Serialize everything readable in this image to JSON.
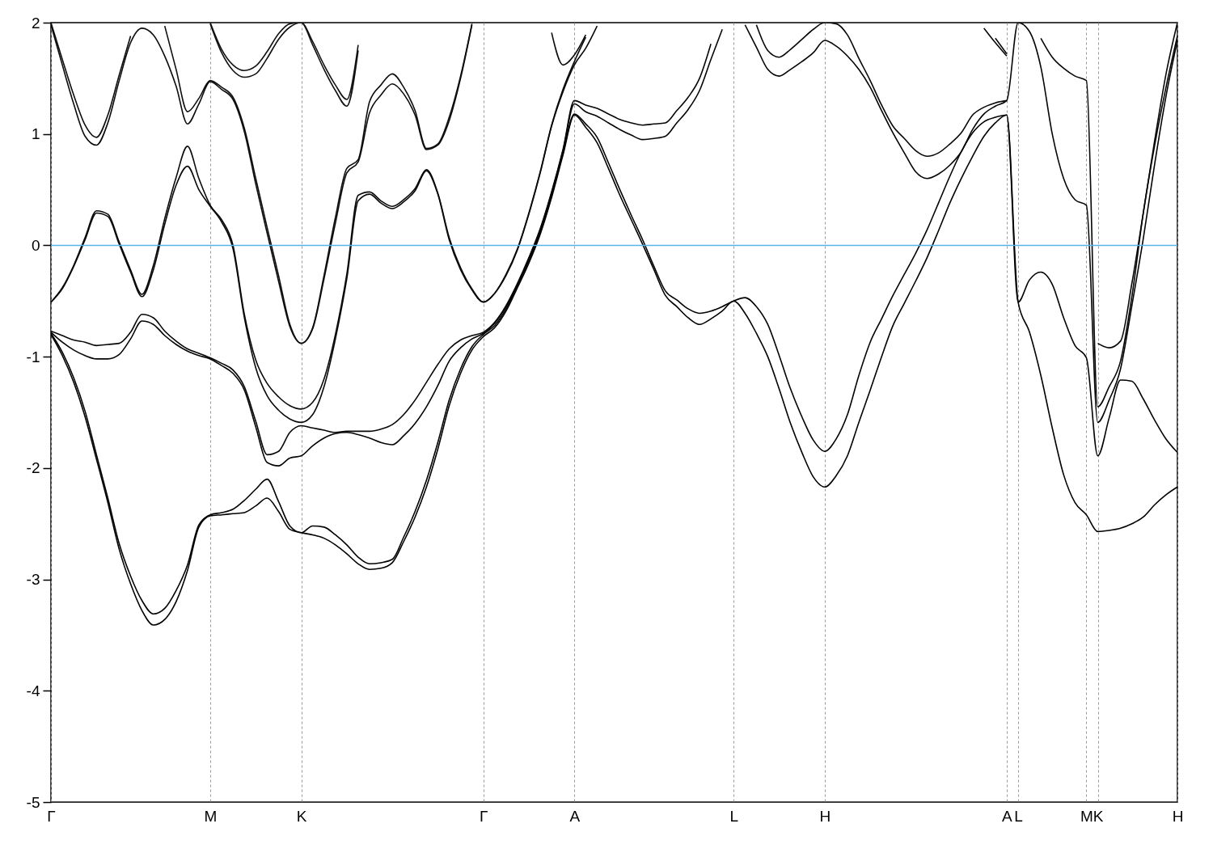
{
  "chart_data": {
    "type": "line",
    "categories": [
      "Γ",
      null,
      null,
      null,
      null,
      null,
      null,
      null,
      null,
      null,
      null,
      null,
      null,
      null,
      "M",
      null,
      null,
      null,
      null,
      null,
      null,
      null,
      "K",
      null,
      null,
      null,
      null,
      null,
      null,
      null,
      null,
      null,
      null,
      null,
      null,
      null,
      null,
      null,
      "Γ",
      null,
      null,
      null,
      null,
      null,
      null,
      null,
      "A",
      null,
      null,
      null,
      null,
      null,
      null,
      null,
      null,
      null,
      null,
      null,
      null,
      null,
      "L",
      null,
      null,
      null,
      null,
      null,
      null,
      null,
      "H",
      null,
      null,
      null,
      null,
      null,
      null,
      null,
      null,
      null,
      null,
      null,
      null,
      null,
      null,
      null,
      "A",
      "L",
      null,
      null,
      null,
      null,
      null,
      "M",
      "K",
      null,
      null,
      null,
      null,
      null,
      null,
      "H"
    ],
    "series": [
      {
        "color": "#000000",
        "values": [
          -0.8,
          -0.99,
          -1.23,
          -1.54,
          -1.92,
          -2.31,
          -2.73,
          -3.04,
          -3.28,
          -3.41,
          -3.36,
          -3.2,
          -2.92,
          -2.53,
          -2.43,
          -2.42,
          -2.41,
          -2.4,
          -2.34,
          -2.27,
          -2.39,
          -2.55,
          -2.58,
          -2.6,
          -2.63,
          -2.69,
          -2.77,
          -2.86,
          -2.91,
          -2.9,
          -2.85,
          -2.66,
          -2.44,
          -2.17,
          -1.83,
          -1.44,
          -1.15,
          -0.94,
          -0.82,
          -0.74,
          -0.59,
          -0.38,
          -0.16,
          0.1,
          0.43,
          0.81,
          1.17,
          1.06,
          0.92,
          0.69,
          0.45,
          0.23,
          0.01,
          -0.22,
          -0.45,
          -0.55,
          -0.65,
          -0.71,
          -0.66,
          -0.59,
          -0.5,
          -0.61,
          -0.79,
          -1.0,
          -1.29,
          -1.6,
          -1.86,
          -2.08,
          -2.17,
          -2.07,
          -1.89,
          -1.59,
          -1.3,
          -1.0,
          -0.72,
          -0.52,
          -0.32,
          -0.11,
          0.13,
          0.38,
          0.6,
          0.8,
          0.98,
          1.1,
          1.17,
          -0.51,
          -0.78,
          -1.17,
          -1.64,
          -2.06,
          -2.31,
          -2.42,
          -2.57,
          -2.56,
          -2.54,
          -2.5,
          -2.44,
          -2.33,
          -2.24,
          -2.17
        ]
      },
      {
        "color": "#020202",
        "values": [
          -0.79,
          -0.96,
          -1.19,
          -1.49,
          -1.88,
          -2.27,
          -2.68,
          -2.97,
          -3.19,
          -3.31,
          -3.26,
          -3.1,
          -2.87,
          -2.51,
          -2.42,
          -2.4,
          -2.37,
          -2.29,
          -2.19,
          -2.1,
          -2.3,
          -2.52,
          -2.58,
          -2.52,
          -2.53,
          -2.6,
          -2.69,
          -2.8,
          -2.86,
          -2.85,
          -2.82,
          -2.62,
          -2.39,
          -2.11,
          -1.77,
          -1.39,
          -1.11,
          -0.91,
          -0.8,
          -0.72,
          -0.57,
          -0.36,
          -0.14,
          0.12,
          0.45,
          0.83,
          1.18,
          1.09,
          0.97,
          0.74,
          0.5,
          0.27,
          0.05,
          -0.19,
          -0.41,
          -0.49,
          -0.57,
          -0.61,
          -0.59,
          -0.55,
          -0.5,
          -0.47,
          -0.55,
          -0.71,
          -0.99,
          -1.29,
          -1.54,
          -1.75,
          -1.85,
          -1.74,
          -1.52,
          -1.17,
          -0.87,
          -0.66,
          -0.45,
          -0.26,
          -0.07,
          0.14,
          0.38,
          0.62,
          0.84,
          1.01,
          1.11,
          1.15,
          1.17,
          -0.51,
          -0.31,
          -0.24,
          -0.35,
          -0.65,
          -0.9,
          -1.01,
          -1.89,
          -1.55,
          -1.21,
          -1.22,
          -1.38,
          -1.57,
          -1.74,
          -1.86
        ]
      },
      {
        "color": "#040404",
        "values": [
          -0.78,
          -0.87,
          -0.94,
          -0.99,
          -1.02,
          -1.02,
          -0.98,
          -0.84,
          -0.68,
          -0.71,
          -0.81,
          -0.89,
          -0.95,
          -0.99,
          -1.02,
          -1.08,
          -1.15,
          -1.3,
          -1.63,
          -1.95,
          -1.98,
          -1.91,
          -1.89,
          -1.8,
          -1.73,
          -1.69,
          -1.68,
          -1.7,
          -1.73,
          -1.77,
          -1.79,
          -1.71,
          -1.6,
          -1.45,
          -1.26,
          -1.04,
          -0.92,
          -0.84,
          -0.79,
          -0.7,
          -0.55,
          -0.35,
          -0.12,
          0.14,
          0.47,
          0.85,
          1.27,
          1.2,
          1.16,
          1.1,
          1.04,
          0.99,
          0.95,
          0.96,
          0.98,
          1.1,
          1.22,
          1.39,
          1.67,
          1.94,
          null,
          1.98,
          1.78,
          1.58,
          1.52,
          1.58,
          1.65,
          1.73,
          1.84,
          1.79,
          1.7,
          1.58,
          1.42,
          1.21,
          1.01,
          0.83,
          0.66,
          0.6,
          0.64,
          0.72,
          0.84,
          1.04,
          1.18,
          1.25,
          1.3,
          2.0,
          1.92,
          1.6,
          1.0,
          0.6,
          0.41,
          0.36,
          -1.59,
          -1.39,
          -1.11,
          -0.54,
          0.06,
          0.73,
          1.34,
          1.84
        ]
      },
      {
        "color": "#060606",
        "values": [
          -0.77,
          -0.81,
          -0.85,
          -0.87,
          -0.9,
          -0.89,
          -0.88,
          -0.78,
          -0.62,
          -0.65,
          -0.77,
          -0.86,
          -0.93,
          -0.97,
          -1.01,
          -1.06,
          -1.12,
          -1.27,
          -1.58,
          -1.88,
          -1.85,
          -1.68,
          -1.62,
          -1.64,
          -1.66,
          -1.68,
          -1.67,
          -1.67,
          -1.67,
          -1.65,
          -1.61,
          -1.52,
          -1.39,
          -1.23,
          -1.07,
          -0.93,
          -0.85,
          -0.81,
          -0.78,
          -0.69,
          -0.54,
          -0.34,
          -0.11,
          0.15,
          0.48,
          0.86,
          1.3,
          1.26,
          1.23,
          1.18,
          1.13,
          1.1,
          1.08,
          1.09,
          1.1,
          1.21,
          1.33,
          1.5,
          1.81,
          null,
          null,
          null,
          1.98,
          1.75,
          1.69,
          1.76,
          1.85,
          1.94,
          2.0,
          1.99,
          1.89,
          1.68,
          1.48,
          1.26,
          1.07,
          0.96,
          0.85,
          0.8,
          0.83,
          0.91,
          1.01,
          1.17,
          1.24,
          1.28,
          1.3,
          null,
          null,
          1.86,
          1.69,
          1.59,
          1.52,
          1.48,
          -1.45,
          -1.27,
          -1.04,
          -0.46,
          0.29,
          0.9,
          1.42,
          1.88
        ]
      },
      {
        "color": "#080808",
        "values": [
          -0.51,
          -0.39,
          -0.19,
          0.05,
          0.29,
          0.26,
          0.01,
          -0.24,
          -0.46,
          -0.22,
          0.19,
          0.54,
          0.71,
          0.5,
          0.35,
          0.21,
          -0.03,
          -0.65,
          -1.1,
          -1.35,
          -1.48,
          -1.56,
          -1.59,
          -1.52,
          -1.27,
          -0.84,
          -0.3,
          0.4,
          0.46,
          0.38,
          0.33,
          0.39,
          0.49,
          0.67,
          0.46,
          0.05,
          -0.22,
          -0.4,
          -0.51,
          -0.43,
          -0.27,
          -0.04,
          0.28,
          0.65,
          1.07,
          1.38,
          1.62,
          1.77,
          1.97,
          null,
          null,
          null,
          null,
          null,
          null,
          null,
          null,
          null,
          null,
          null,
          null,
          null,
          null,
          null,
          null,
          null,
          null,
          null,
          null,
          null,
          null,
          null,
          null,
          null,
          null,
          null,
          null,
          null,
          null,
          null,
          null,
          null,
          1.95,
          1.82,
          1.7,
          null,
          null,
          null,
          null,
          null,
          null,
          null,
          -0.88,
          -0.92,
          -0.86,
          -0.34,
          0.29,
          0.94,
          1.54,
          2.0
        ]
      },
      {
        "color": "#0a0a0a",
        "values": [
          -0.51,
          -0.38,
          -0.18,
          0.07,
          0.31,
          0.28,
          0.03,
          -0.22,
          -0.44,
          -0.18,
          0.24,
          0.61,
          0.89,
          0.6,
          0.36,
          0.23,
          0.0,
          -0.62,
          -1.03,
          -1.24,
          -1.36,
          -1.44,
          -1.47,
          -1.41,
          -1.2,
          -0.8,
          -0.26,
          0.45,
          0.48,
          0.4,
          0.35,
          0.41,
          0.51,
          0.68,
          0.47,
          0.07,
          -0.2,
          -0.39,
          -0.51,
          -0.43,
          -0.26,
          -0.03,
          0.29,
          0.66,
          1.08,
          1.4,
          1.65,
          1.87,
          null,
          null,
          null,
          null,
          null,
          null,
          null,
          null,
          null,
          null,
          null,
          null,
          null,
          null,
          null,
          null,
          null,
          null,
          null,
          null,
          null,
          null,
          null,
          null,
          null,
          null,
          null,
          null,
          null,
          null,
          null,
          null,
          null,
          null,
          null,
          1.86,
          1.72,
          null,
          null,
          null,
          null,
          null,
          null,
          null,
          null,
          null,
          null,
          null,
          null,
          null,
          null,
          null
        ]
      },
      {
        "color": "#0c0c0c",
        "values": [
          1.98,
          1.62,
          1.27,
          0.98,
          0.9,
          1.1,
          1.48,
          1.82,
          1.95,
          1.89,
          1.7,
          1.43,
          1.09,
          1.27,
          1.47,
          1.4,
          1.31,
          1.02,
          0.55,
          0.11,
          -0.32,
          -0.73,
          -0.88,
          -0.75,
          -0.3,
          0.2,
          0.65,
          0.75,
          1.19,
          1.35,
          1.45,
          1.36,
          1.17,
          0.86,
          0.9,
          1.12,
          1.5,
          1.98,
          null,
          null,
          null,
          null,
          null,
          null,
          1.91,
          1.62,
          1.71,
          1.89,
          null,
          null,
          null,
          null,
          null,
          null,
          null,
          null,
          null,
          null,
          null,
          null,
          null,
          null,
          null,
          null,
          null,
          null,
          null,
          null,
          null,
          null,
          null,
          null,
          null,
          null,
          null,
          null,
          null,
          null,
          null,
          null,
          null,
          null,
          null,
          null,
          null,
          null,
          null,
          null,
          null,
          null,
          null,
          null,
          null,
          null,
          null,
          null,
          null,
          null,
          null,
          null
        ]
      },
      {
        "color": "#0e0e0e",
        "values": [
          2.0,
          1.67,
          1.35,
          1.08,
          0.97,
          1.17,
          1.53,
          1.88,
          null,
          null,
          1.97,
          1.58,
          1.2,
          1.32,
          1.48,
          1.42,
          1.33,
          1.05,
          0.6,
          0.16,
          -0.27,
          -0.71,
          -0.88,
          -0.74,
          -0.27,
          0.25,
          0.69,
          0.77,
          1.29,
          1.44,
          1.54,
          1.42,
          1.21,
          0.87,
          0.91,
          1.15,
          1.52,
          1.99,
          null,
          null,
          null,
          null,
          null,
          null,
          null,
          null,
          null,
          null,
          null,
          null,
          null,
          null,
          null,
          null,
          null,
          null,
          null,
          null,
          null,
          null,
          null,
          null,
          null,
          null,
          null,
          null,
          null,
          null,
          null,
          null,
          null,
          null,
          null,
          null,
          null,
          null,
          null,
          null,
          null,
          null,
          null,
          null,
          null,
          null,
          null,
          null,
          null,
          null,
          null,
          null,
          null,
          null,
          null,
          null,
          null,
          null,
          null,
          null,
          null,
          null
        ]
      },
      {
        "color": "#101010",
        "values": [
          null,
          null,
          null,
          null,
          null,
          null,
          null,
          null,
          null,
          null,
          null,
          null,
          null,
          null,
          1.99,
          1.73,
          1.57,
          1.51,
          1.54,
          1.68,
          1.85,
          1.96,
          2.0,
          1.8,
          1.58,
          1.39,
          1.25,
          1.75,
          null,
          null,
          null,
          null,
          null,
          null,
          null,
          null,
          null,
          null,
          null,
          null,
          null,
          null,
          null,
          null,
          null,
          null,
          null,
          null,
          null,
          null,
          null,
          null,
          null,
          null,
          null,
          null,
          null,
          null,
          null,
          null,
          null,
          null,
          null,
          null,
          null,
          null,
          null,
          null,
          null,
          null,
          null,
          null,
          null,
          null,
          null,
          null,
          null,
          null,
          null,
          null,
          null,
          null,
          null,
          null,
          null,
          null,
          null,
          null,
          null,
          null,
          null,
          null,
          null,
          null,
          null,
          null,
          null,
          null,
          null,
          null
        ]
      },
      {
        "color": "#121212",
        "values": [
          null,
          null,
          null,
          null,
          null,
          null,
          null,
          null,
          null,
          null,
          null,
          null,
          null,
          null,
          2.0,
          1.76,
          1.62,
          1.57,
          1.61,
          1.74,
          1.9,
          1.99,
          2.0,
          1.83,
          1.62,
          1.44,
          1.31,
          1.8,
          null,
          null,
          null,
          null,
          null,
          null,
          null,
          null,
          null,
          null,
          null,
          null,
          null,
          null,
          null,
          null,
          null,
          null,
          null,
          null,
          null,
          null,
          null,
          null,
          null,
          null,
          null,
          null,
          null,
          null,
          null,
          null,
          null,
          null,
          null,
          null,
          null,
          null,
          null,
          null,
          null,
          null,
          null,
          null,
          null,
          null,
          null,
          null,
          null,
          null,
          null,
          null,
          null,
          null,
          null,
          null,
          null,
          null,
          null,
          null,
          null,
          null,
          null,
          null,
          null,
          null,
          null,
          null,
          null,
          null,
          null,
          null
        ]
      }
    ],
    "ylim": [
      -5,
      2
    ],
    "yticks": [
      -5,
      -4,
      -3,
      -2,
      -1,
      0,
      1,
      2
    ],
    "grid": "x",
    "ref_lines": [
      {
        "axis": "y",
        "value": 0,
        "color": "#56b4e9"
      }
    ]
  }
}
